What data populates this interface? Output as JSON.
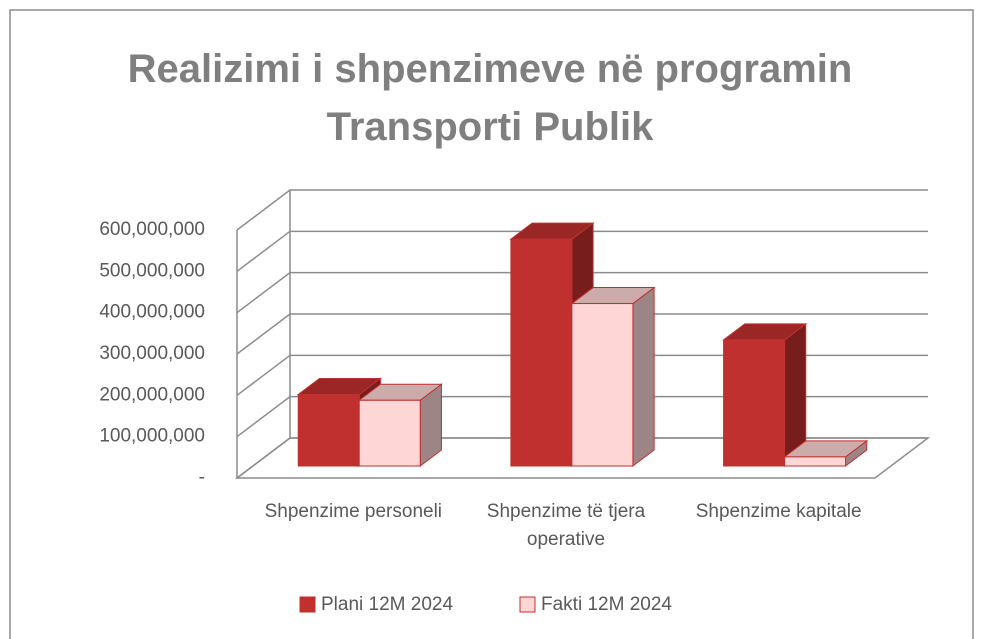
{
  "chart_data": {
    "type": "bar3d",
    "title": "Realizimi i shpenzimeve në programin Transporti Publik",
    "categories": [
      "Shpenzime personeli",
      "Shpenzime të tjera operative",
      "Shpenzime kapitale"
    ],
    "series": [
      {
        "name": "Plani 12M 2024",
        "color": "#c0302f",
        "values": [
          173000000,
          549000000,
          305000000
        ]
      },
      {
        "name": "Fakti 12M 2024",
        "color": "#ffd6d6",
        "values": [
          159000000,
          393000000,
          22000000
        ]
      }
    ],
    "ylim": [
      0,
      600000000
    ],
    "yticks": [
      {
        "value": 0,
        "label": "-"
      },
      {
        "value": 100000000,
        "label": "100,000,000"
      },
      {
        "value": 200000000,
        "label": "200,000,000"
      },
      {
        "value": 300000000,
        "label": "300,000,000"
      },
      {
        "value": 400000000,
        "label": "400,000,000"
      },
      {
        "value": 500000000,
        "label": "500,000,000"
      },
      {
        "value": 600000000,
        "label": "600,000,000"
      }
    ],
    "grid": true,
    "legend": "bottom"
  }
}
